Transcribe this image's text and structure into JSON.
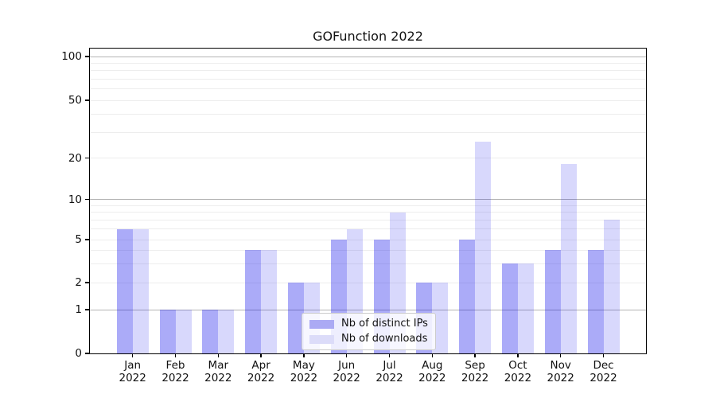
{
  "chart_data": {
    "type": "bar",
    "title": "GOFunction 2022",
    "categories": [
      "Jan",
      "Feb",
      "Mar",
      "Apr",
      "May",
      "Jun",
      "Jul",
      "Aug",
      "Sep",
      "Oct",
      "Nov",
      "Dec"
    ],
    "x_year": "2022",
    "series": [
      {
        "name": "Nb of distinct IPs",
        "color": "rgba(10,10,235,0.34)",
        "color_on_white": "#abaaf4",
        "values": [
          6,
          1,
          1,
          4,
          2,
          5,
          5,
          2,
          5,
          3,
          4,
          4
        ]
      },
      {
        "name": "Nb of downloads",
        "color": "rgba(10,10,235,0.16)",
        "color_on_white": "#dcdcf9",
        "values": [
          6,
          1,
          1,
          4,
          2,
          6,
          8,
          2,
          26,
          3,
          18,
          7
        ]
      }
    ],
    "y_ticks": [
      100,
      50,
      20,
      10,
      5,
      2,
      1,
      0
    ],
    "y_scale": "symlog",
    "ylim": [
      0,
      112
    ],
    "grid": {
      "major": [
        1,
        10,
        100
      ],
      "minor": [
        2,
        3,
        4,
        5,
        6,
        7,
        8,
        9,
        20,
        30,
        40,
        50,
        60,
        70,
        80,
        90
      ]
    },
    "legend": {
      "position": "lower-center-inside",
      "entries": [
        "Nb of distinct IPs",
        "Nb of downloads"
      ]
    }
  }
}
